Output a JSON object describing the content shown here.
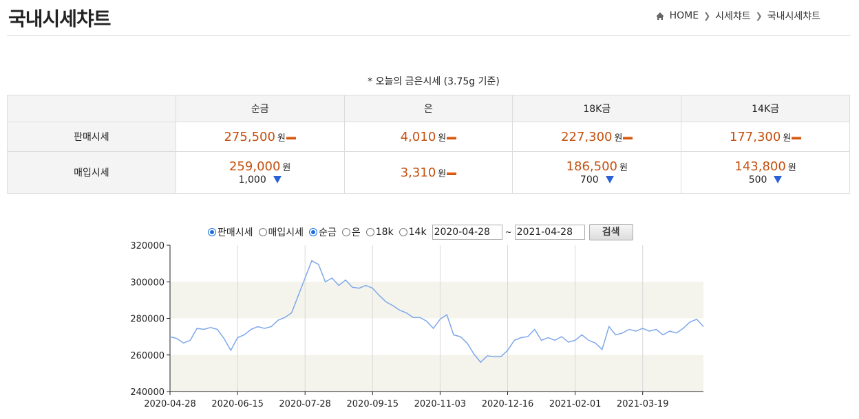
{
  "header": {
    "title": "국내시세챠트",
    "breadcrumb": [
      "HOME",
      "시세챠트",
      "국내시세챠트"
    ]
  },
  "caption": "* 오늘의 금은시세 (3.75g 기준)",
  "table": {
    "columns": [
      "순금",
      "은",
      "18K금",
      "14K금"
    ],
    "rows": [
      {
        "label": "판매시세",
        "cells": [
          {
            "price": "275,500",
            "unit": "원",
            "trend": "flat"
          },
          {
            "price": "4,010",
            "unit": "원",
            "trend": "flat"
          },
          {
            "price": "227,300",
            "unit": "원",
            "trend": "flat"
          },
          {
            "price": "177,300",
            "unit": "원",
            "trend": "flat"
          }
        ]
      },
      {
        "label": "매입시세",
        "cells": [
          {
            "price": "259,000",
            "unit": "원",
            "change": "1,000",
            "trend": "down"
          },
          {
            "price": "3,310",
            "unit": "원",
            "trend": "flat"
          },
          {
            "price": "186,500",
            "unit": "원",
            "change": "700",
            "trend": "down"
          },
          {
            "price": "143,800",
            "unit": "원",
            "change": "500",
            "trend": "down"
          }
        ]
      }
    ]
  },
  "controls": {
    "options": [
      {
        "label": "판매시세",
        "checked": true
      },
      {
        "label": "매입시세",
        "checked": false
      },
      {
        "label": "순금",
        "checked": true
      },
      {
        "label": "은",
        "checked": false
      },
      {
        "label": "18k",
        "checked": false
      },
      {
        "label": "14k",
        "checked": false
      }
    ],
    "start_date": "2020-04-28",
    "separator": "~",
    "end_date": "2021-04-28",
    "button": "검색"
  },
  "chart_data": {
    "type": "line",
    "color": "#7ea7ea",
    "band_color": "#f4f4ec",
    "grid": true,
    "categories": [
      "2020-04-28",
      null,
      null,
      null,
      null,
      null,
      null,
      null,
      null,
      null,
      "2020-06-15",
      null,
      null,
      null,
      null,
      null,
      null,
      null,
      null,
      null,
      "2020-07-28",
      null,
      null,
      null,
      null,
      null,
      null,
      null,
      null,
      null,
      "2020-09-15",
      null,
      null,
      null,
      null,
      null,
      null,
      null,
      null,
      null,
      "2020-11-03",
      null,
      null,
      null,
      null,
      null,
      null,
      null,
      null,
      null,
      "2020-12-16",
      null,
      null,
      null,
      null,
      null,
      null,
      null,
      null,
      null,
      "2021-02-01",
      null,
      null,
      null,
      null,
      null,
      null,
      null,
      null,
      null,
      "2021-03-19",
      null,
      null,
      null,
      null,
      null,
      null,
      null,
      null,
      null
    ],
    "values": [
      270000,
      269000,
      266500,
      268000,
      274500,
      274000,
      275000,
      274000,
      269000,
      262500,
      269500,
      271000,
      274000,
      275500,
      274500,
      275500,
      279000,
      280500,
      283000,
      292500,
      302000,
      311500,
      309500,
      300000,
      302000,
      298000,
      301000,
      297000,
      296500,
      298000,
      296500,
      292500,
      289000,
      287000,
      284500,
      283000,
      280500,
      280500,
      278500,
      274500,
      279500,
      282000,
      271000,
      270000,
      266500,
      260500,
      256000,
      259500,
      259000,
      259000,
      262500,
      268000,
      269500,
      270000,
      274000,
      268000,
      269500,
      268000,
      270000,
      267000,
      268000,
      271000,
      268000,
      266500,
      263000,
      275500,
      271000,
      272000,
      274000,
      273000,
      274500,
      273000,
      274000,
      271000,
      273000,
      272000,
      274500,
      278000,
      279500,
      275500
    ],
    "ylim": [
      240000,
      320000
    ],
    "yticks": [
      240000,
      260000,
      280000,
      300000,
      320000
    ]
  }
}
